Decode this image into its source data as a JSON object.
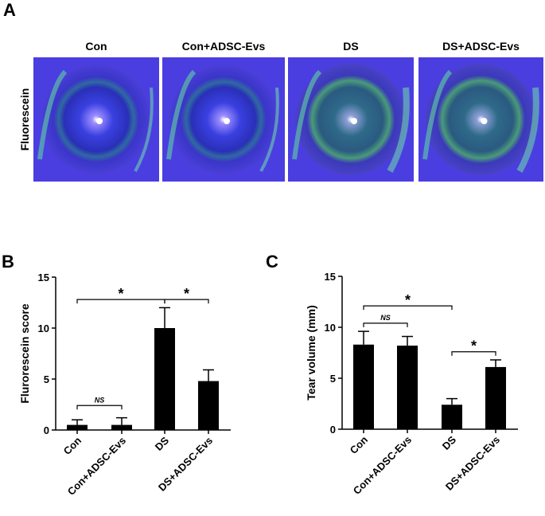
{
  "figure": {
    "panel_a": {
      "label": "A",
      "columns": [
        "Con",
        "Con+ADSC-Evs",
        "DS",
        "DS+ADSC-Evs"
      ],
      "row_label": "Fluorescein"
    }
  },
  "chart_data": [
    {
      "type": "bar",
      "panel_label": "B",
      "y_label": "Flurorescein  score",
      "categories": [
        "Con",
        "Con+ADSC-Evs",
        "DS",
        "DS+ADSC-Evs"
      ],
      "values": [
        0.5,
        0.5,
        10,
        4.8
      ],
      "errors": [
        0.5,
        0.7,
        2,
        1.1
      ],
      "color": "#000000",
      "ylim": [
        0,
        15
      ],
      "yticks": [
        0,
        5,
        10,
        15
      ],
      "annotations": [
        "*",
        "*",
        "NS"
      ]
    },
    {
      "type": "bar",
      "panel_label": "C",
      "y_label": "Tear volume (mm)",
      "categories": [
        "Con",
        "Con+ADSC-Evs",
        "DS",
        "DS+ADSC-Evs"
      ],
      "values": [
        8.3,
        8.2,
        2.4,
        6.1
      ],
      "errors": [
        1.3,
        0.9,
        0.6,
        0.7
      ],
      "color": "#000000",
      "ylim": [
        0,
        15
      ],
      "yticks": [
        0,
        5,
        10,
        15
      ],
      "annotations": [
        "NS",
        "*",
        "*"
      ]
    }
  ]
}
